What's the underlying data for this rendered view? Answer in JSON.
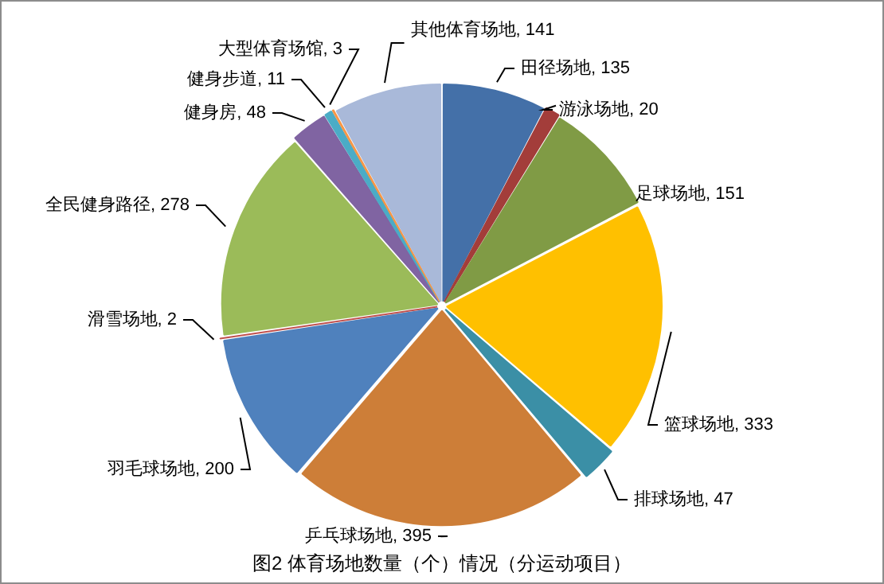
{
  "chart_data": {
    "type": "pie",
    "title": "图2 体育场地数量（个）情况（分运动项目）",
    "categories": [
      "田径场地",
      "游泳场地",
      "足球场地",
      "篮球场地",
      "排球场地",
      "乒乓球场地",
      "羽毛球场地",
      "滑雪场地",
      "全民健身路径",
      "健身房",
      "健身步道",
      "大型体育场馆",
      "其他体育场地"
    ],
    "values": [
      135,
      20,
      151,
      333,
      47,
      395,
      200,
      2,
      278,
      48,
      11,
      3,
      141
    ],
    "value_labels": [
      ", 135",
      ", 20",
      ", 151",
      ", 333",
      ", 47",
      ", 395",
      ", 200",
      ", 2",
      ", 278",
      ", 48",
      ", 11",
      ", 3",
      ", 141"
    ],
    "colors": [
      "#4470a8",
      "#a33d3a",
      "#809b45",
      "#ffc000",
      "#3b8fa6",
      "#cd7e38",
      "#4f81bd",
      "#c0504d",
      "#9bbb59",
      "#8064a2",
      "#4bacc6",
      "#f79646",
      "#a9b9d9"
    ],
    "legend": false
  }
}
